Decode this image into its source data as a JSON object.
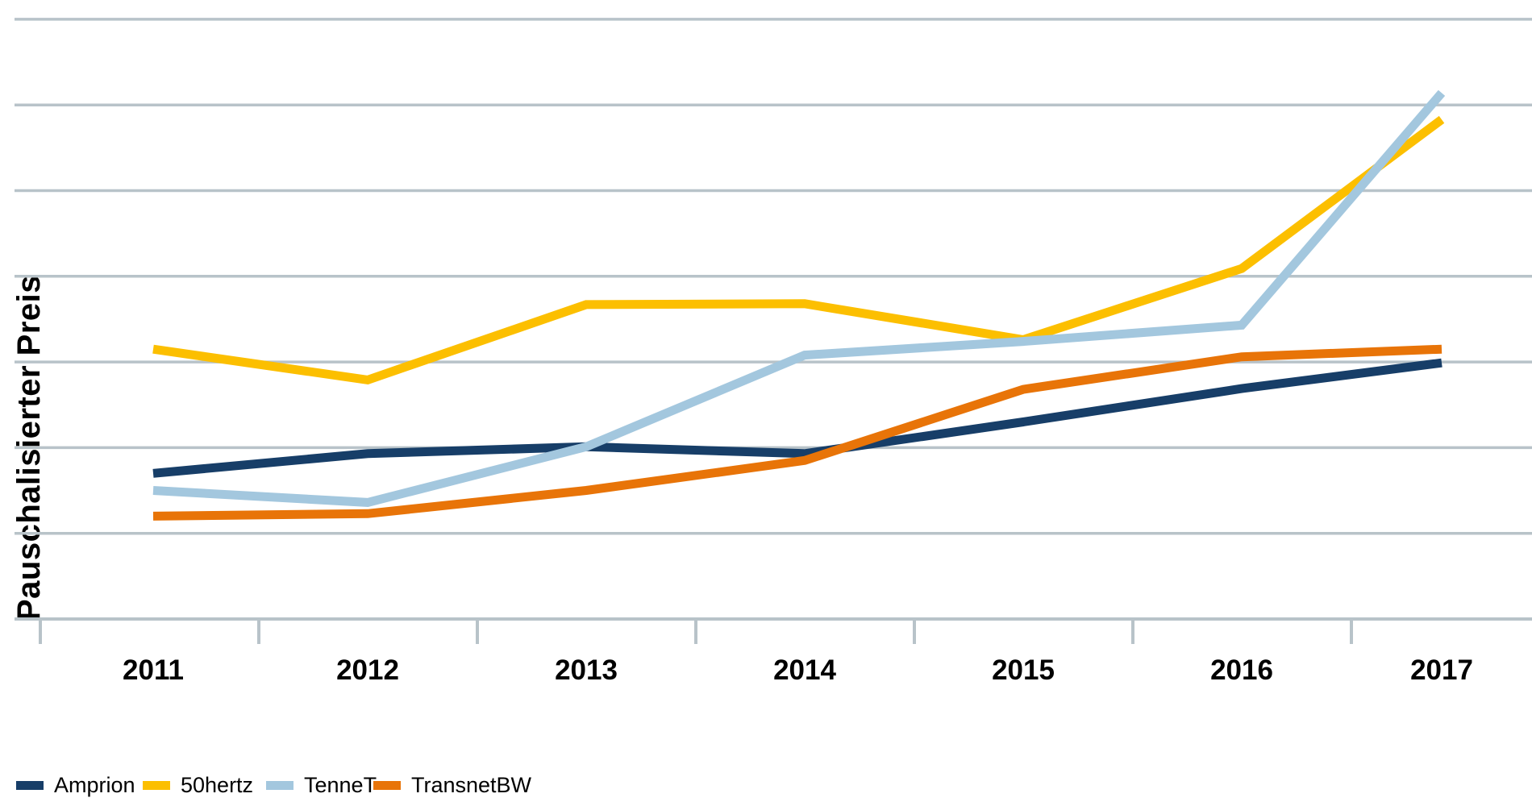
{
  "chart_data": {
    "type": "line",
    "title": "",
    "xlabel": "",
    "ylabel": "Pauschalisierter Preis",
    "categories": [
      "2011",
      "2012",
      "2013",
      "2014",
      "2015",
      "2016",
      "2017"
    ],
    "series": [
      {
        "name": "Amprion",
        "color": "#173e68",
        "values": [
          1.7,
          1.93,
          2.01,
          1.93,
          2.3,
          2.69,
          2.99
        ]
      },
      {
        "name": "50hertz",
        "color": "#fcbf00",
        "values": [
          3.15,
          2.79,
          3.67,
          3.68,
          3.26,
          4.09,
          5.83
        ]
      },
      {
        "name": "TenneT",
        "color": "#a3c7de",
        "values": [
          1.5,
          1.36,
          2.01,
          3.08,
          3.24,
          3.43,
          6.14
        ]
      },
      {
        "name": "TransnetBW",
        "color": "#e87408",
        "values": [
          1.2,
          1.23,
          1.5,
          1.85,
          2.68,
          3.06,
          3.15
        ]
      }
    ],
    "ylim": [
      0,
      7
    ],
    "y_axis_tick_labels": "none (unlabeled scale, 7 horizontal gridlines, one grid unit per line)",
    "grid": "horizontal",
    "legend_position": "bottom-left",
    "gridline_color": "#b8c3c9",
    "text_color": "#000000",
    "background_color": "#ffffff"
  }
}
